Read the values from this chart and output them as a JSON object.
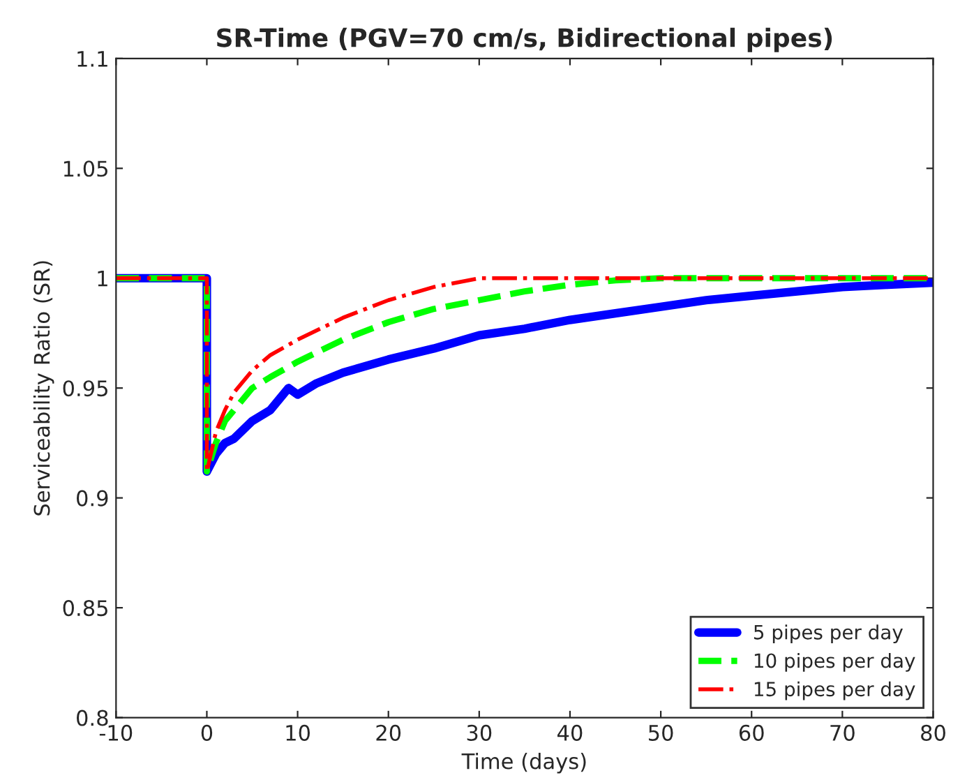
{
  "chart_data": {
    "type": "line",
    "title": "SR-Time (PGV=70 cm/s, Bidirectional pipes)",
    "xlabel": "Time (days)",
    "ylabel": "Serviceability Ratio (SR)",
    "xlim": [
      -10,
      80
    ],
    "xticks": [
      -10,
      0,
      10,
      20,
      30,
      40,
      50,
      60,
      70,
      80
    ],
    "ylim": [
      0.8,
      1.1
    ],
    "yticks": [
      0.8,
      0.85,
      0.9,
      0.95,
      1,
      1.05,
      1.1
    ],
    "grid": false,
    "legend": "bottom right",
    "marker": "none",
    "series": [
      {
        "name": "5 pipes per day",
        "color": "#0000ff",
        "line_style": "solid",
        "x": [
          -10,
          0,
          0,
          1,
          2,
          3,
          5,
          7,
          9,
          10,
          12,
          15,
          20,
          25,
          30,
          35,
          40,
          45,
          50,
          55,
          60,
          65,
          70,
          75,
          80
        ],
        "values": [
          1,
          1,
          0.912,
          0.92,
          0.925,
          0.927,
          0.935,
          0.94,
          0.95,
          0.947,
          0.952,
          0.957,
          0.963,
          0.968,
          0.974,
          0.977,
          0.981,
          0.984,
          0.987,
          0.99,
          0.992,
          0.994,
          0.996,
          0.997,
          0.998
        ]
      },
      {
        "name": "10 pipes per day",
        "color": "#00ff00",
        "line_style": "dashed",
        "x": [
          -10,
          0,
          0,
          1,
          2,
          3,
          5,
          7,
          10,
          15,
          20,
          25,
          30,
          35,
          40,
          45,
          50,
          80
        ],
        "values": [
          1,
          1,
          0.912,
          0.925,
          0.935,
          0.94,
          0.95,
          0.955,
          0.962,
          0.972,
          0.98,
          0.986,
          0.99,
          0.994,
          0.997,
          0.999,
          1,
          1
        ]
      },
      {
        "name": "15 pipes per day",
        "color": "#ff0000",
        "line_style": "dashdot",
        "x": [
          -10,
          0,
          0,
          1,
          2,
          3,
          5,
          7,
          10,
          15,
          20,
          25,
          30,
          80
        ],
        "values": [
          1,
          1,
          0.912,
          0.93,
          0.94,
          0.948,
          0.958,
          0.965,
          0.972,
          0.982,
          0.99,
          0.996,
          1,
          1
        ]
      }
    ]
  }
}
